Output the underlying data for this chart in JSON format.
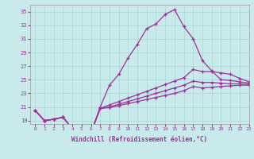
{
  "title": "",
  "xlabel": "Windchill (Refroidissement éolien,°C)",
  "ylabel": "",
  "bg_color": "#c8eaea",
  "line_color": "#993399",
  "xlim": [
    -0.5,
    23
  ],
  "ylim": [
    18.5,
    36
  ],
  "yticks": [
    19,
    21,
    23,
    25,
    27,
    29,
    31,
    33,
    35
  ],
  "xticks": [
    0,
    1,
    2,
    3,
    4,
    5,
    6,
    7,
    8,
    9,
    10,
    11,
    12,
    13,
    14,
    15,
    16,
    17,
    18,
    19,
    20,
    21,
    22,
    23
  ],
  "line1": [
    20.5,
    19.0,
    19.2,
    19.5,
    17.8,
    17.2,
    17.2,
    21.0,
    24.2,
    25.8,
    28.2,
    30.2,
    32.5,
    33.2,
    34.6,
    35.3,
    32.8,
    31.0,
    27.8,
    26.3,
    25.0,
    24.9,
    24.7,
    24.5
  ],
  "line2": [
    20.5,
    19.0,
    19.2,
    19.5,
    17.8,
    17.2,
    17.2,
    20.8,
    21.3,
    21.8,
    22.3,
    22.8,
    23.3,
    23.8,
    24.3,
    24.8,
    25.3,
    26.5,
    26.2,
    26.2,
    26.0,
    25.8,
    25.2,
    24.7
  ],
  "line3": [
    20.5,
    19.0,
    19.2,
    19.5,
    17.8,
    17.2,
    17.2,
    20.8,
    21.0,
    21.4,
    21.8,
    22.2,
    22.6,
    23.0,
    23.4,
    23.8,
    24.2,
    24.8,
    24.6,
    24.6,
    24.5,
    24.4,
    24.4,
    24.3
  ],
  "line4": [
    20.5,
    19.0,
    19.2,
    19.5,
    17.8,
    17.2,
    17.2,
    20.8,
    20.9,
    21.2,
    21.5,
    21.8,
    22.1,
    22.4,
    22.7,
    23.0,
    23.4,
    24.0,
    23.8,
    23.9,
    24.0,
    24.1,
    24.2,
    24.2
  ]
}
